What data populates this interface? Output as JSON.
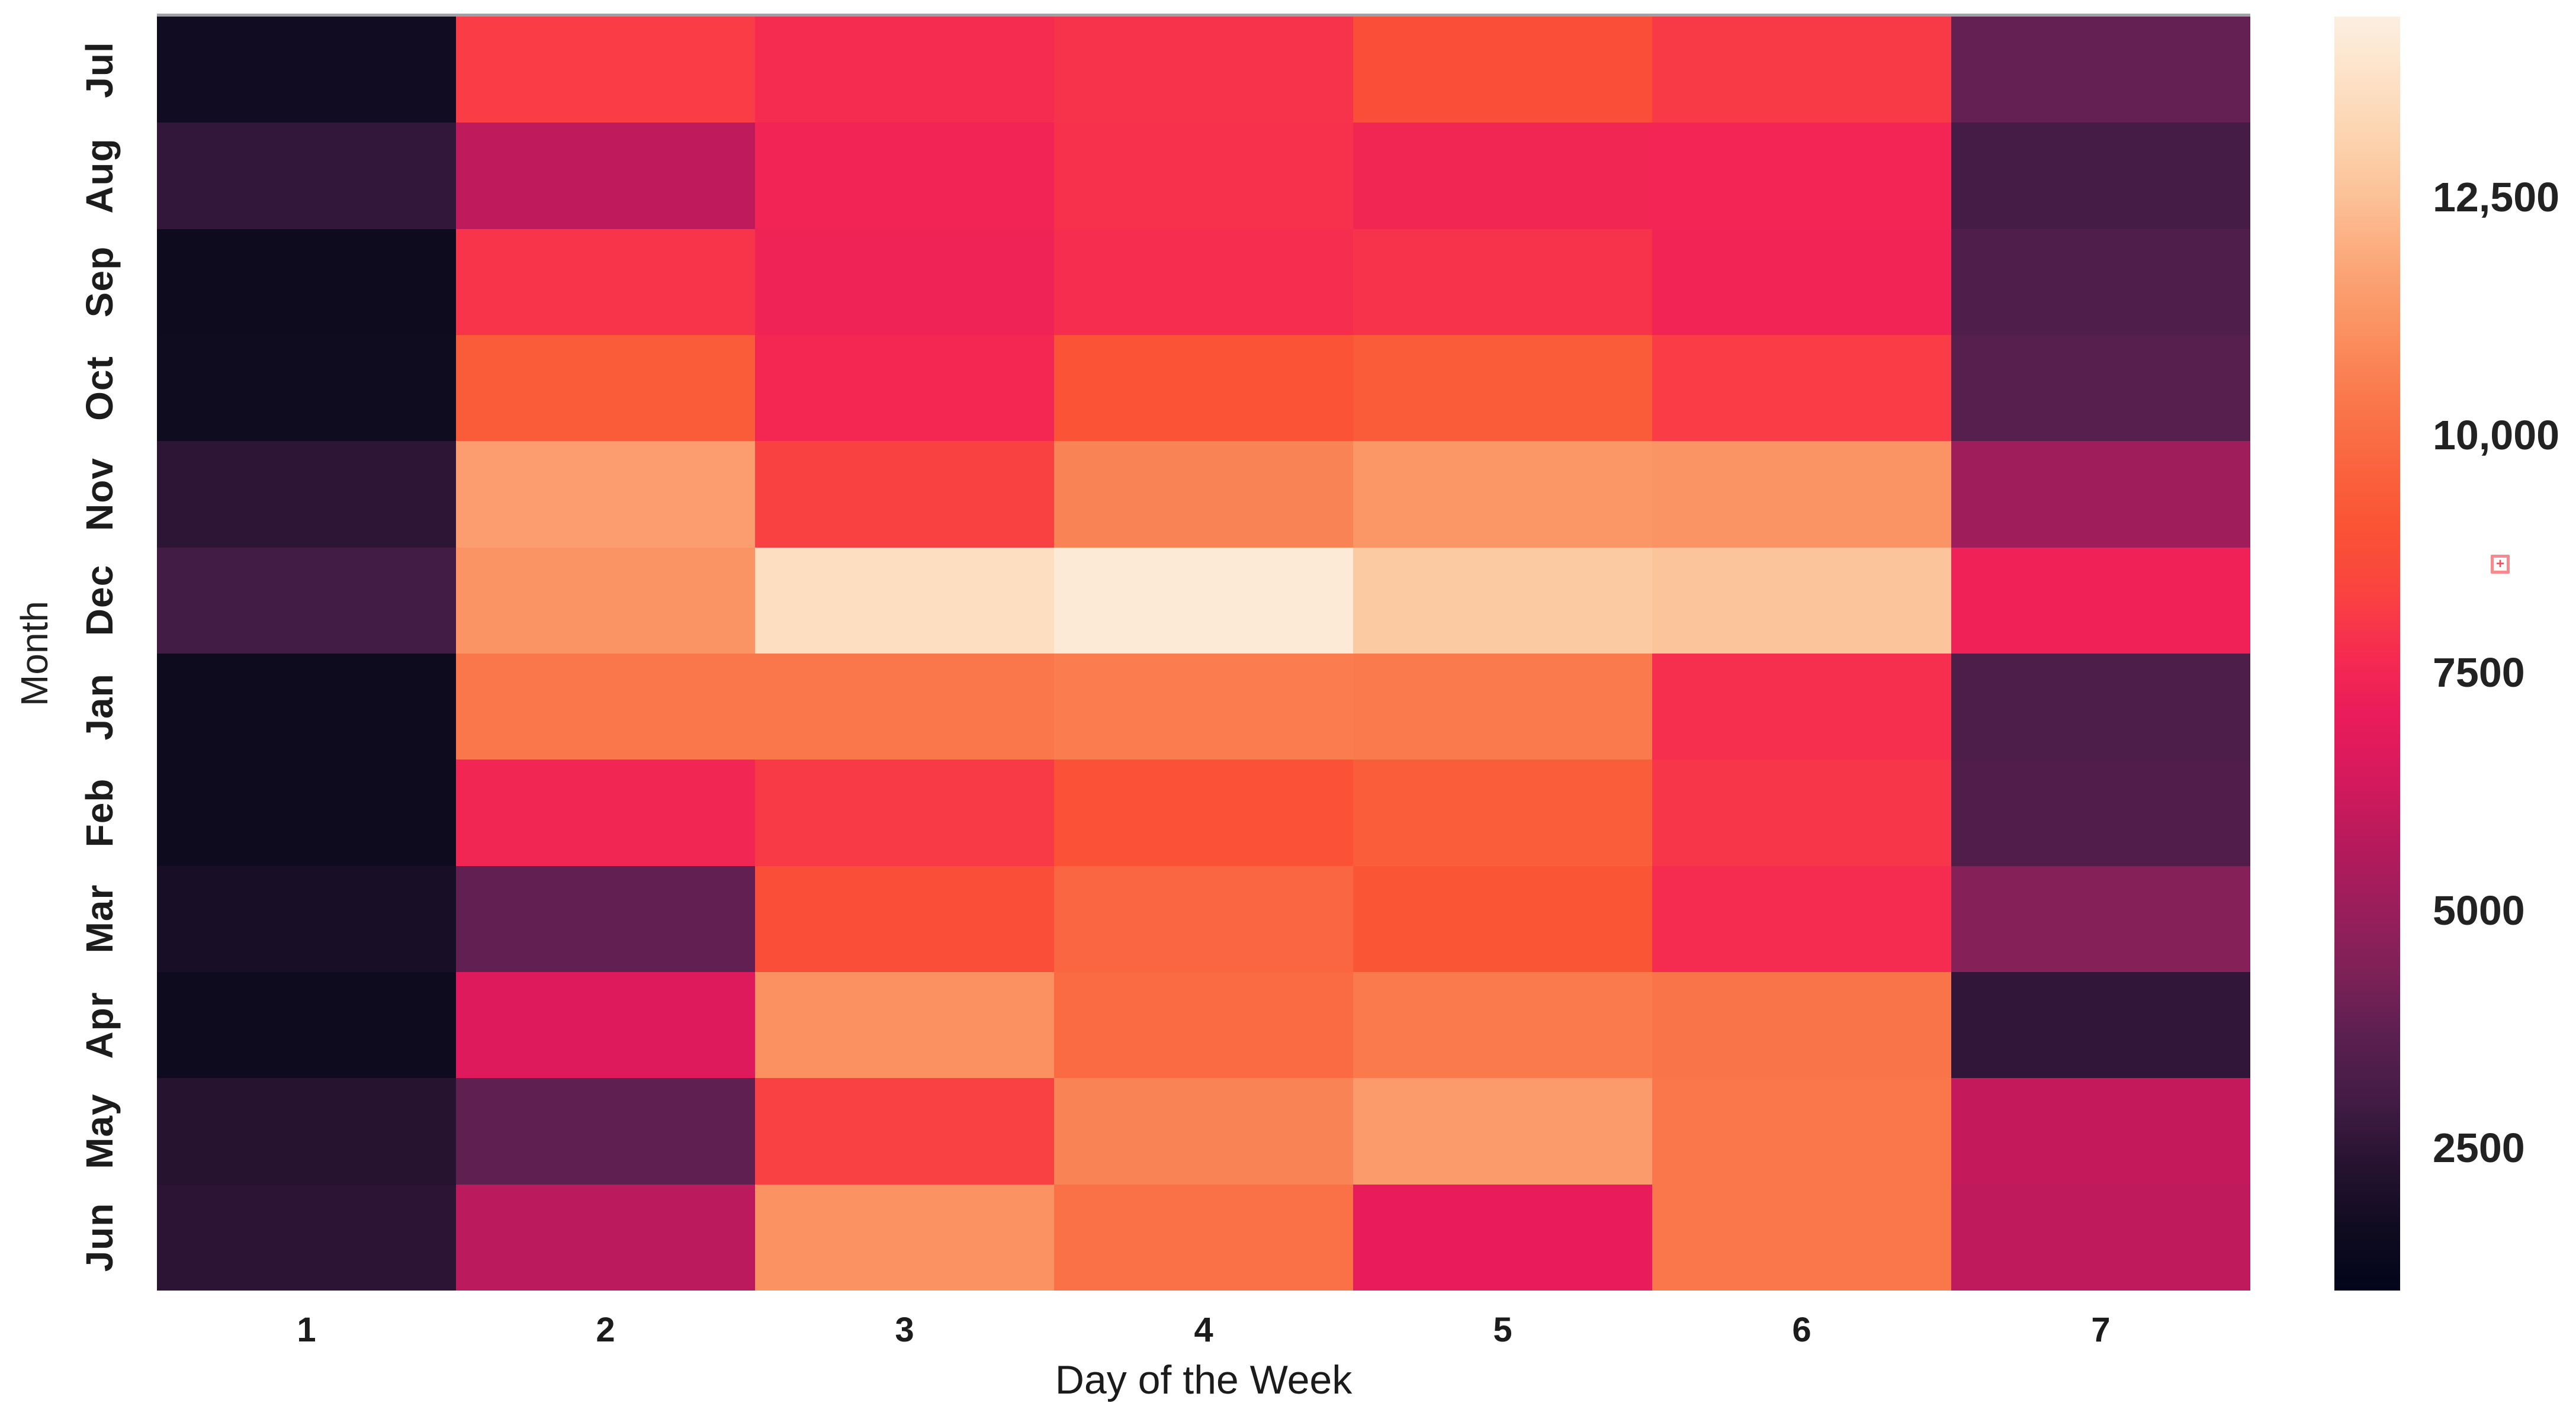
{
  "figure": {
    "background": "#ffffff"
  },
  "chart_data": {
    "type": "heatmap",
    "title": "",
    "xlabel": "Day of the Week",
    "ylabel": "Month",
    "x_ticks": [
      "1",
      "2",
      "3",
      "4",
      "5",
      "6",
      "7"
    ],
    "y_ticks": [
      "Jul",
      "Aug",
      "Sep",
      "Oct",
      "Nov",
      "Dec",
      "Jan",
      "Feb",
      "Mar",
      "Apr",
      "May",
      "Jun"
    ],
    "vmin": 1000,
    "vmax": 14400,
    "values": [
      [
        1700,
        8150,
        7700,
        7900,
        8800,
        8100,
        3850
      ],
      [
        2650,
        5900,
        7400,
        7850,
        7500,
        7450,
        3050
      ],
      [
        1600,
        7950,
        7350,
        7750,
        7900,
        7400,
        3350
      ],
      [
        1650,
        9300,
        7550,
        9000,
        9350,
        8150,
        3550
      ],
      [
        2500,
        11500,
        8300,
        10700,
        11300,
        11200,
        5150
      ],
      [
        3000,
        11200,
        13600,
        14150,
        12800,
        12600,
        7300
      ],
      [
        1600,
        10300,
        10350,
        10500,
        10400,
        7800,
        3300
      ],
      [
        1600,
        7500,
        8100,
        8900,
        9400,
        8000,
        3400
      ],
      [
        1900,
        3800,
        8800,
        9750,
        9100,
        7700,
        4550
      ],
      [
        1550,
        6650,
        11100,
        9900,
        10450,
        10250,
        2600
      ],
      [
        2300,
        3750,
        8250,
        10700,
        11400,
        10350,
        6000
      ],
      [
        2450,
        5800,
        11150,
        10100,
        7050,
        10300,
        5900
      ]
    ],
    "legend_position": "right",
    "grid": false,
    "colormap": {
      "name": "rocket",
      "stops": [
        [
          0.0,
          "#03051A"
        ],
        [
          0.05,
          "#100C20"
        ],
        [
          0.1,
          "#261331"
        ],
        [
          0.15,
          "#431C45"
        ],
        [
          0.2,
          "#5B2050"
        ],
        [
          0.25,
          "#7E2158"
        ],
        [
          0.3,
          "#9A1E5B"
        ],
        [
          0.35,
          "#B61A5C"
        ],
        [
          0.4,
          "#D41A5C"
        ],
        [
          0.45,
          "#EA1B5B"
        ],
        [
          0.5,
          "#F62B50"
        ],
        [
          0.55,
          "#FA4440"
        ],
        [
          0.6,
          "#FA5434"
        ],
        [
          0.65,
          "#FA6540"
        ],
        [
          0.7,
          "#FA784C"
        ],
        [
          0.75,
          "#FB8F5F"
        ],
        [
          0.8,
          "#FBA475"
        ],
        [
          0.85,
          "#FCBD92"
        ],
        [
          0.9,
          "#FCD2AC"
        ],
        [
          0.95,
          "#FDE1C6"
        ],
        [
          1.0,
          "#FCEFE0"
        ]
      ]
    },
    "colorbar_ticks": [
      {
        "value": 12500,
        "label": "12,500"
      },
      {
        "value": 10000,
        "label": "10,000"
      },
      {
        "value": 7500,
        "label": "7500"
      },
      {
        "value": 5000,
        "label": "5000"
      },
      {
        "value": 2500,
        "label": "2500"
      }
    ]
  },
  "artifacts": {
    "broken_image_icon": {
      "glyph": "+"
    }
  }
}
